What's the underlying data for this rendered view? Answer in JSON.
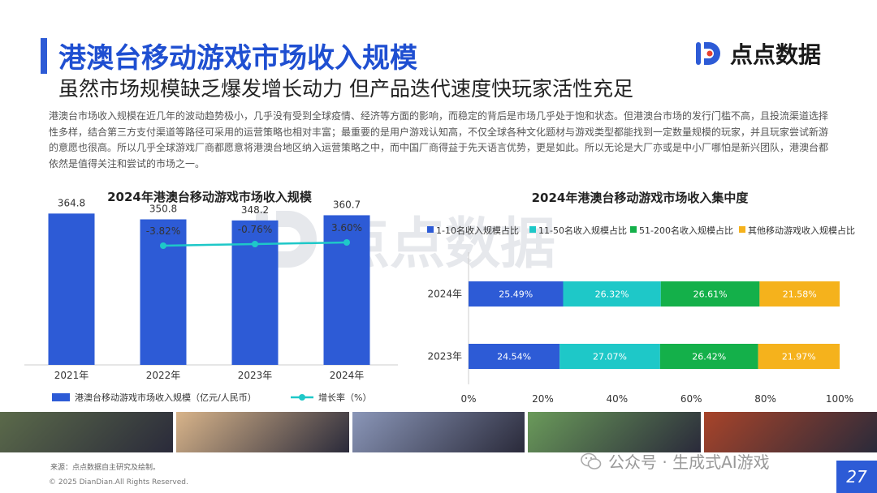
{
  "header": {
    "title": "港澳台移动游戏市场收入规模",
    "subtitle": "虽然市场规模缺乏爆发增长动力 但产品迭代速度快玩家活性充足"
  },
  "logo": {
    "text": "点点数据"
  },
  "description": "港澳台市场收入规模在近几年的波动趋势极小，几乎没有受到全球疫情、经济等方面的影响，而稳定的背后是市场几乎处于饱和状态。但港澳台市场的发行门槛不高，且投流渠道选择性多样，结合第三方支付渠道等路径可采用的运营策略也相对丰富；最重要的是用户游戏认知高，不仅全球各种文化题材与游戏类型都能找到一定数量规模的玩家，并且玩家尝试新游的意愿也很高。所以几乎全球游戏厂商都愿意将港澳台地区纳入运营策略之中，而中国厂商得益于先天语言优势，更是如此。所以无论是大厂亦或是中小厂哪怕是新兴团队，港澳台都依然是值得关注和尝试的市场之一。",
  "chart_data": [
    {
      "type": "bar",
      "title": "2024年港澳台移动游戏市场收入规模",
      "categories": [
        "2021年",
        "2022年",
        "2023年",
        "2024年"
      ],
      "series": [
        {
          "name": "港澳台移动游戏市场收入规模（亿元/人民币）",
          "type": "bar",
          "color": "#2d5bd6",
          "values": [
            364.8,
            350.8,
            348.2,
            360.7
          ],
          "labels": [
            "364.8",
            "350.8",
            "348.2",
            "360.7"
          ]
        },
        {
          "name": "增长率（%）",
          "type": "line",
          "color": "#1ec8c8",
          "values": [
            null,
            -3.82,
            -0.76,
            3.6
          ],
          "labels": [
            "",
            "-3.82%",
            "-0.76%",
            "3.60%"
          ]
        }
      ],
      "ylim": [
        0,
        430
      ],
      "legend": "bottom"
    },
    {
      "type": "bar",
      "orientation": "horizontal",
      "stacked": true,
      "title": "2024年港澳台移动游戏市场收入集中度",
      "categories": [
        "2024年",
        "2023年"
      ],
      "series": [
        {
          "name": "1-10名收入规模占比",
          "color": "#2d5bd6",
          "values": [
            25.49,
            24.54
          ],
          "labels": [
            "25.49%",
            "24.54%"
          ]
        },
        {
          "name": "11-50名收入规模占比",
          "color": "#1ec8c8",
          "values": [
            26.32,
            27.07
          ],
          "labels": [
            "26.32%",
            "27.07%"
          ]
        },
        {
          "name": "51-200名收入规模占比",
          "color": "#14b04a",
          "values": [
            26.61,
            26.42
          ],
          "labels": [
            "26.61%",
            "26.42%"
          ]
        },
        {
          "name": "其他移动游戏收入规模占比",
          "color": "#f5b21c",
          "values": [
            21.58,
            21.97
          ],
          "labels": [
            "21.58%",
            "21.97%"
          ]
        }
      ],
      "xlim": [
        0,
        100
      ],
      "xticks": [
        "0%",
        "20%",
        "40%",
        "60%",
        "80%",
        "100%"
      ],
      "legend": "top"
    }
  ],
  "footer": {
    "source": "来源：点点数据自主研究及绘制。",
    "copyright": "© 2025 DianDian.All Rights Reserved.",
    "wechat": "公众号 · 生成式AI游戏",
    "page": "27"
  },
  "strip_colors": [
    "#5b6a4a",
    "#d8b48a",
    "#8a96b8",
    "#6a9a5a",
    "#a8442a"
  ]
}
